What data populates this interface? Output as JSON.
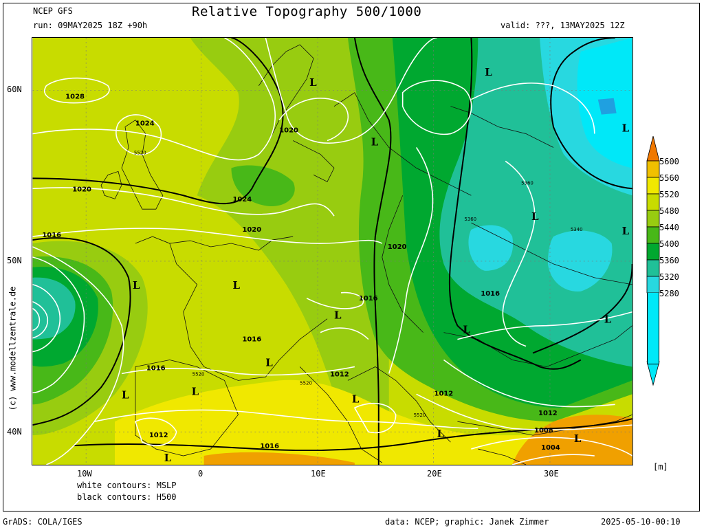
{
  "header": {
    "model": "NCEP GFS",
    "title": "Relative Topography 500/1000",
    "run": "run: 09MAY2025 18Z +90h",
    "valid": "valid: ???, 13MAY2025 12Z"
  },
  "footer": {
    "contours_white": "white contours: MSLP",
    "contours_black": "black contours: H500",
    "grads": "GrADS: COLA/IGES",
    "data_credit": "data: NCEP; graphic: Janek Zimmer",
    "timestamp": "2025-05-10-00:10",
    "watermark": "(c) www.modellzentrale.de"
  },
  "map": {
    "lat_labels": [
      "60N",
      "50N",
      "40N"
    ],
    "lon_labels": [
      "10W",
      "0",
      "10E",
      "20E",
      "30E"
    ],
    "low_marker": "L",
    "mslp_labels": [
      "1028",
      "1024",
      "1020",
      "1024",
      "1020",
      "1016",
      "1020",
      "1016",
      "1016",
      "1016",
      "1012",
      "1012",
      "1012",
      "1016",
      "1012",
      "1008",
      "1004",
      "1020",
      "1016"
    ],
    "thickness_labels": [
      "5520",
      "5360",
      "5360",
      "5340",
      "5520",
      "5520",
      "5520"
    ],
    "colors": {
      "c5280": "#00e8f8",
      "c5320": "#28d8e0",
      "c5360": "#20c098",
      "c5400": "#00a830",
      "c5440": "#48b818",
      "c5480": "#98cc10",
      "c5520": "#c8dc00",
      "c5560": "#f0e800",
      "c5600": "#f0a000"
    }
  },
  "legend": {
    "values": [
      "5600",
      "5560",
      "5520",
      "5480",
      "5440",
      "5400",
      "5360",
      "5320",
      "5280"
    ],
    "unit": "[m]",
    "colors": [
      "#f07800",
      "#f0c000",
      "#f0e800",
      "#c8dc00",
      "#98cc10",
      "#48b818",
      "#00a830",
      "#20c098",
      "#28d8e0",
      "#00e8f8"
    ]
  }
}
